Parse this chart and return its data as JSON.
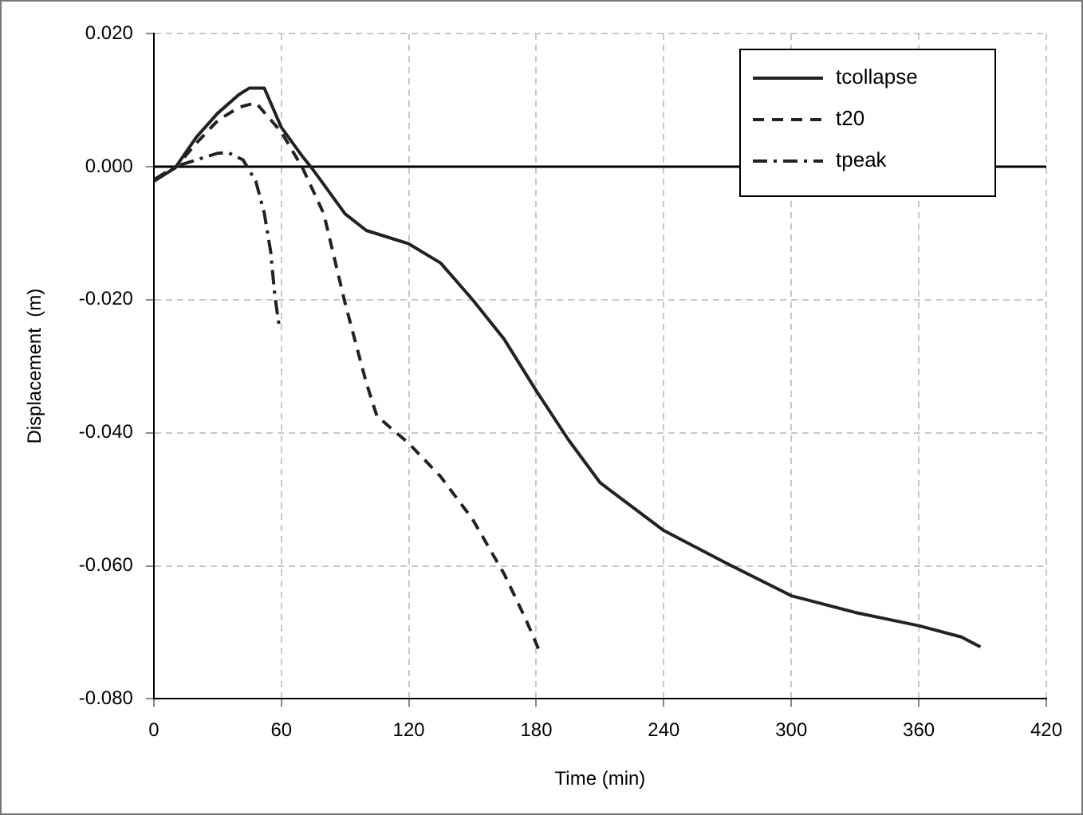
{
  "chart_data": {
    "type": "line",
    "xlabel": "Time (min)",
    "ylabel": "Displacement  (m)",
    "xlim": [
      0,
      420
    ],
    "xticks": [
      0,
      60,
      120,
      180,
      240,
      300,
      360,
      420
    ],
    "ylim": [
      -0.08,
      0.02
    ],
    "yticks": [
      {
        "value": -0.08,
        "label": "-0.080"
      },
      {
        "value": -0.06,
        "label": "-0.060"
      },
      {
        "value": -0.04,
        "label": "-0.040"
      },
      {
        "value": -0.02,
        "label": "-0.020"
      },
      {
        "value": 0,
        "label": "0.000"
      },
      {
        "value": 0.02,
        "label": "0.020"
      }
    ],
    "grid": true,
    "legend": "top right",
    "marker": "none",
    "ref_lines": [
      {
        "axis": "y",
        "value": 0,
        "color": "#000000"
      }
    ],
    "series": [
      {
        "name": "tcollapse",
        "color": "#222222",
        "line_style": "solid",
        "x": [
          0,
          10,
          20,
          30,
          40,
          45,
          52,
          60,
          70,
          75,
          80,
          90,
          100,
          120,
          135,
          150,
          165,
          180,
          195,
          210,
          240,
          270,
          300,
          330,
          360,
          380,
          389
        ],
        "values": [
          -0.0022,
          -0.0002,
          0.0044,
          0.008,
          0.0108,
          0.0118,
          0.0118,
          0.0059,
          0.0015,
          -0.0005,
          -0.0027,
          -0.0071,
          -0.0096,
          -0.0116,
          -0.0145,
          -0.02,
          -0.026,
          -0.0337,
          -0.041,
          -0.0475,
          -0.0547,
          -0.0597,
          -0.0645,
          -0.067,
          -0.069,
          -0.0707,
          -0.0722
        ]
      },
      {
        "name": "t20",
        "color": "#222222",
        "line_style": "dashed",
        "x": [
          0,
          10,
          20,
          30,
          40,
          48,
          60,
          70,
          80,
          90,
          100,
          105,
          120,
          135,
          150,
          165,
          175,
          182
        ],
        "values": [
          -0.002,
          -0.0002,
          0.0035,
          0.0069,
          0.0089,
          0.0096,
          0.0052,
          -0.0002,
          -0.0071,
          -0.0205,
          -0.0325,
          -0.0375,
          -0.0416,
          -0.0466,
          -0.053,
          -0.0613,
          -0.068,
          -0.0732
        ]
      },
      {
        "name": "tpeak",
        "color": "#222222",
        "line_style": "dashdot",
        "x": [
          0,
          10,
          20,
          30,
          35,
          42,
          48,
          52,
          55,
          57,
          59
        ],
        "values": [
          -0.002,
          0,
          0.001,
          0.002,
          0.0021,
          0.001,
          -0.0022,
          -0.007,
          -0.0128,
          -0.0195,
          -0.024
        ]
      }
    ]
  }
}
